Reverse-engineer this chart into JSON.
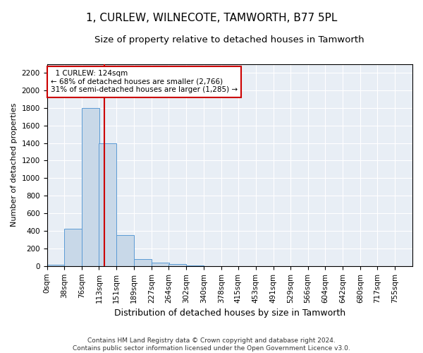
{
  "title": "1, CURLEW, WILNECOTE, TAMWORTH, B77 5PL",
  "subtitle": "Size of property relative to detached houses in Tamworth",
  "xlabel": "Distribution of detached houses by size in Tamworth",
  "ylabel": "Number of detached properties",
  "bin_edges": [
    0,
    38,
    76,
    113,
    151,
    189,
    227,
    264,
    302,
    340,
    378,
    415,
    453,
    491,
    529,
    566,
    604,
    642,
    680,
    717,
    755
  ],
  "bar_heights": [
    15,
    425,
    1800,
    1400,
    350,
    80,
    35,
    20,
    5,
    0,
    0,
    0,
    0,
    0,
    0,
    0,
    0,
    0,
    0,
    0
  ],
  "bar_color": "#c8d8e8",
  "bar_edge_color": "#5b9bd5",
  "property_size": 124,
  "vline_color": "#cc0000",
  "annotation_text": "  1 CURLEW: 124sqm\n← 68% of detached houses are smaller (2,766)\n31% of semi-detached houses are larger (1,285) →",
  "annotation_box_color": "#ffffff",
  "annotation_box_edge_color": "#cc0000",
  "ylim": [
    0,
    2300
  ],
  "yticks": [
    0,
    200,
    400,
    600,
    800,
    1000,
    1200,
    1400,
    1600,
    1800,
    2000,
    2200
  ],
  "background_color": "#e8eef5",
  "grid_color": "#ffffff",
  "footer_line1": "Contains HM Land Registry data © Crown copyright and database right 2024.",
  "footer_line2": "Contains public sector information licensed under the Open Government Licence v3.0.",
  "title_fontsize": 11,
  "subtitle_fontsize": 9.5,
  "xlabel_fontsize": 9,
  "ylabel_fontsize": 8,
  "tick_fontsize": 7.5,
  "footer_fontsize": 6.5
}
